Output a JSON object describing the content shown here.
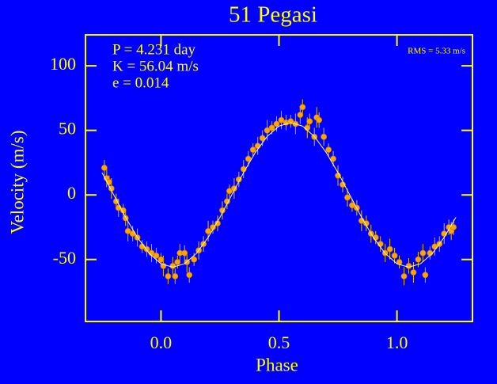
{
  "chart_data": {
    "type": "scatter",
    "title": "51 Pegasi",
    "xlabel": "Phase",
    "ylabel": "Velocity (m/s)",
    "annotations": [
      "P = 4.231 day",
      "K = 56.04 m/s",
      "e = 0.014"
    ],
    "rms": "RMS = 5.33 m/s",
    "xlim": [
      -0.32,
      1.32
    ],
    "ylim": [
      -98,
      124
    ],
    "xticks": [
      {
        "value": 0,
        "label": "0.0"
      },
      {
        "value": 0.5,
        "label": "0.5"
      },
      {
        "value": 1,
        "label": "1.0"
      }
    ],
    "yticks": [
      -50,
      0,
      50,
      100
    ],
    "axis_color": "#ffff00",
    "background": "#0000ff",
    "series": [
      {
        "color": "#ffa500",
        "error_color": "#e8c000",
        "x": [
          -0.24,
          -0.23,
          -0.22,
          -0.21,
          -0.19,
          -0.18,
          -0.16,
          -0.15,
          -0.14,
          -0.12,
          -0.1,
          -0.08,
          -0.06,
          -0.04,
          -0.02,
          0.0,
          0.01,
          0.03,
          0.05,
          0.06,
          0.07,
          0.08,
          0.1,
          0.11,
          0.12,
          0.14,
          0.16,
          0.18,
          0.2,
          0.22,
          0.24,
          0.26,
          0.28,
          0.29,
          0.31,
          0.33,
          0.35,
          0.37,
          0.39,
          0.41,
          0.43,
          0.45,
          0.47,
          0.49,
          0.51,
          0.53,
          0.55,
          0.57,
          0.59,
          0.6,
          0.62,
          0.63,
          0.65,
          0.66,
          0.67,
          0.69,
          0.71,
          0.73,
          0.75,
          0.77,
          0.79,
          0.81,
          0.83,
          0.85,
          0.87,
          0.89,
          0.91,
          0.93,
          0.95,
          0.97,
          0.99,
          1.01,
          1.03,
          1.05,
          1.07,
          1.09,
          1.11,
          1.12,
          1.14,
          1.16,
          1.18,
          1.2,
          1.22,
          1.23,
          1.24
        ],
        "values": [
          21,
          13,
          10,
          5,
          -5,
          -10,
          -12,
          -18,
          -28,
          -30,
          -33,
          -40,
          -42,
          -45,
          -47,
          -50,
          -55,
          -63,
          -55,
          -63,
          -52,
          -45,
          -45,
          -52,
          -62,
          -50,
          -43,
          -38,
          -28,
          -25,
          -22,
          -12,
          -5,
          3,
          5,
          12,
          20,
          28,
          35,
          38,
          44,
          50,
          52,
          55,
          58,
          56,
          57,
          55,
          62,
          68,
          52,
          57,
          45,
          60,
          58,
          45,
          35,
          28,
          15,
          8,
          -2,
          -8,
          -10,
          -20,
          -22,
          -30,
          -33,
          -38,
          -45,
          -42,
          -47,
          -52,
          -63,
          -55,
          -60,
          -50,
          -45,
          -62,
          -45,
          -40,
          -38,
          -30,
          -25,
          -28,
          -25
        ],
        "errors": [
          6,
          7,
          5,
          8,
          6,
          7,
          5,
          6,
          8,
          6,
          7,
          5,
          6,
          7,
          6,
          5,
          8,
          6,
          7,
          6,
          5,
          7,
          6,
          8,
          6,
          5,
          7,
          6,
          8,
          5,
          6,
          7,
          6,
          5,
          8,
          6,
          7,
          6,
          5,
          7,
          6,
          8,
          5,
          6,
          7,
          6,
          5,
          8,
          7,
          6,
          8,
          6,
          7,
          8,
          6,
          7,
          5,
          6,
          8,
          6,
          7,
          5,
          6,
          8,
          6,
          7,
          5,
          6,
          7,
          8,
          6,
          5,
          7,
          6,
          8,
          6,
          7,
          6,
          5,
          7,
          6,
          8,
          6,
          7,
          6
        ]
      },
      {
        "type": "line",
        "color": "#ffffc0",
        "x": [
          -0.25,
          -0.2,
          -0.15,
          -0.1,
          -0.05,
          0,
          0.05,
          0.1,
          0.15,
          0.2,
          0.25,
          0.3,
          0.35,
          0.4,
          0.45,
          0.5,
          0.55,
          0.6,
          0.65,
          0.7,
          0.75,
          0.8,
          0.85,
          0.9,
          0.95,
          1,
          1.05,
          1.1,
          1.15,
          1.2,
          1.25
        ],
        "values": [
          17.3,
          0,
          -17.3,
          -32.9,
          -45.3,
          -53.3,
          -56,
          -53.3,
          -45.3,
          -32.9,
          -17.3,
          0,
          17.3,
          32.9,
          45.3,
          53.3,
          56,
          53.3,
          45.3,
          32.9,
          17.3,
          0,
          -17.3,
          -32.9,
          -45.3,
          -53.3,
          -56,
          -53.3,
          -45.3,
          -32.9,
          -17.3
        ]
      }
    ]
  }
}
